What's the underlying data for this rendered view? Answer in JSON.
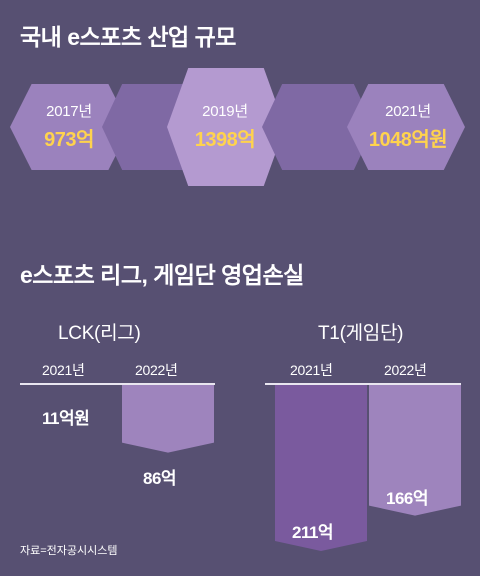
{
  "title_market": "국내 e스포츠 산업 규모",
  "market": [
    {
      "year": "2017년",
      "value_label": "973억",
      "value": 973
    },
    {
      "year": "2019년",
      "value_label": "1398억",
      "value": 1398
    },
    {
      "year": "2021년",
      "value_label": "1048억원",
      "value": 1048
    }
  ],
  "title_loss": "e스포츠 리그, 게임단 영업손실",
  "chart_data": [
    {
      "type": "bar",
      "title": "LCK(리그)",
      "categories": [
        "2021년",
        "2022년"
      ],
      "values": [
        11,
        86
      ],
      "value_labels": [
        "11억원",
        "86억"
      ]
    },
    {
      "type": "bar",
      "title": "T1(게임단)",
      "categories": [
        "2021년",
        "2022년"
      ],
      "values": [
        211,
        166
      ],
      "value_labels": [
        "211억",
        "166억"
      ]
    }
  ],
  "source": "자료=전자공시시스템",
  "colors": {
    "background": "#575072",
    "hex_light": "#b49ad0",
    "hex_mid": "#9b82bd",
    "hex_dark": "#7f69a4",
    "bar_2021": "#7a5a9e",
    "bar_2022": "#9e84bd",
    "highlight": "#ffd34d"
  }
}
